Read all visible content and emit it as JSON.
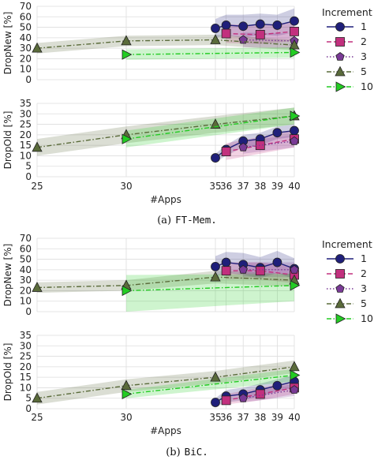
{
  "chart_data": [
    {
      "type": "line",
      "caption_prefix": "(a)",
      "caption_method": "FT-Mem.",
      "xlabel": "#Apps",
      "x_ticks": [
        25,
        30,
        35,
        36,
        37,
        38,
        39,
        40
      ],
      "legend_title": "Increment",
      "legend_placement": "right",
      "grid": true,
      "panels": [
        {
          "ylabel": "DropNew [%]",
          "ylim": [
            0,
            70
          ],
          "y_ticks": [
            0,
            10,
            20,
            30,
            40,
            50,
            60,
            70
          ],
          "series": [
            {
              "name": "1",
              "color": "#1f1f7a",
              "marker": "circle",
              "dash": "solid",
              "x": [
                35,
                36,
                37,
                38,
                39,
                40
              ],
              "y": [
                49,
                52,
                51,
                53,
                52,
                56
              ],
              "band_lo": [
                40,
                42,
                40,
                43,
                42,
                45
              ],
              "band_hi": [
                58,
                62,
                62,
                63,
                62,
                68
              ]
            },
            {
              "name": "2",
              "color": "#c2307e",
              "marker": "square",
              "dash": "dashed",
              "x": [
                36,
                38,
                40
              ],
              "y": [
                44,
                43,
                46
              ],
              "band_lo": [
                35,
                34,
                37
              ],
              "band_hi": [
                53,
                52,
                55
              ]
            },
            {
              "name": "3",
              "color": "#7a3a96",
              "marker": "pentagon",
              "dash": "dotted",
              "x": [
                37,
                40
              ],
              "y": [
                38,
                37
              ],
              "band_lo": [
                31,
                30
              ],
              "band_hi": [
                45,
                44
              ]
            },
            {
              "name": "5",
              "color": "#5a6b3a",
              "marker": "triangle-up",
              "dash": "dashdot",
              "x": [
                25,
                30,
                35,
                40
              ],
              "y": [
                30,
                37,
                38,
                33
              ],
              "band_lo": [
                25,
                32,
                33,
                28
              ],
              "band_hi": [
                35,
                42,
                43,
                38
              ]
            },
            {
              "name": "10",
              "color": "#22cc22",
              "marker": "triangle-right",
              "dash": "dashdot",
              "x": [
                30,
                40
              ],
              "y": [
                24,
                26
              ],
              "band_lo": [
                19,
                21
              ],
              "band_hi": [
                29,
                31
              ]
            }
          ]
        },
        {
          "ylabel": "DropOld [%]",
          "ylim": [
            0,
            35
          ],
          "y_ticks": [
            0,
            5,
            10,
            15,
            20,
            25,
            30,
            35
          ],
          "series": [
            {
              "name": "1",
              "color": "#1f1f7a",
              "marker": "circle",
              "dash": "solid",
              "x": [
                35,
                36,
                37,
                38,
                39,
                40
              ],
              "y": [
                9,
                13,
                17,
                18,
                21,
                22
              ],
              "band_lo": [
                7,
                10,
                14,
                15,
                18,
                19
              ],
              "band_hi": [
                11,
                15,
                20,
                21,
                24,
                25
              ]
            },
            {
              "name": "2",
              "color": "#c2307e",
              "marker": "square",
              "dash": "dashed",
              "x": [
                36,
                38,
                40
              ],
              "y": [
                12,
                15,
                18
              ],
              "band_lo": [
                8,
                11,
                14
              ],
              "band_hi": [
                16,
                19,
                22
              ]
            },
            {
              "name": "3",
              "color": "#7a3a96",
              "marker": "pentagon",
              "dash": "dotted",
              "x": [
                37,
                40
              ],
              "y": [
                14,
                17
              ],
              "band_lo": [
                11,
                14
              ],
              "band_hi": [
                17,
                20
              ]
            },
            {
              "name": "5",
              "color": "#5a6b3a",
              "marker": "triangle-up",
              "dash": "dashdot",
              "x": [
                25,
                30,
                35,
                40
              ],
              "y": [
                14,
                20,
                25,
                29
              ],
              "band_lo": [
                10,
                16,
                21,
                25
              ],
              "band_hi": [
                18,
                24,
                29,
                33
              ]
            },
            {
              "name": "10",
              "color": "#22cc22",
              "marker": "triangle-right",
              "dash": "dashdot",
              "x": [
                30,
                40
              ],
              "y": [
                18,
                29
              ],
              "band_lo": [
                14,
                25
              ],
              "band_hi": [
                22,
                33
              ]
            }
          ]
        }
      ]
    },
    {
      "type": "line",
      "caption_prefix": "(b)",
      "caption_method": "BiC.",
      "xlabel": "#Apps",
      "x_ticks": [
        25,
        30,
        35,
        36,
        37,
        38,
        39,
        40
      ],
      "legend_title": "Increment",
      "legend_placement": "right",
      "grid": true,
      "panels": [
        {
          "ylabel": "DropNew [%]",
          "ylim": [
            0,
            70
          ],
          "y_ticks": [
            0,
            10,
            20,
            30,
            40,
            50,
            60,
            70
          ],
          "series": [
            {
              "name": "1",
              "color": "#1f1f7a",
              "marker": "circle",
              "dash": "solid",
              "x": [
                35,
                36,
                37,
                38,
                39,
                40
              ],
              "y": [
                43,
                47,
                45,
                42,
                47,
                41
              ],
              "band_lo": [
                33,
                37,
                35,
                32,
                37,
                31
              ],
              "band_hi": [
                53,
                57,
                56,
                52,
                58,
                51
              ]
            },
            {
              "name": "2",
              "color": "#c2307e",
              "marker": "square",
              "dash": "dashed",
              "x": [
                36,
                38,
                40
              ],
              "y": [
                39,
                39,
                35
              ],
              "band_lo": [
                31,
                31,
                27
              ],
              "band_hi": [
                47,
                47,
                43
              ]
            },
            {
              "name": "3",
              "color": "#7a3a96",
              "marker": "pentagon",
              "dash": "dotted",
              "x": [
                37,
                40
              ],
              "y": [
                40,
                40
              ],
              "band_lo": [
                33,
                33
              ],
              "band_hi": [
                47,
                47
              ]
            },
            {
              "name": "5",
              "color": "#5a6b3a",
              "marker": "triangle-up",
              "dash": "dashdot",
              "x": [
                25,
                30,
                35,
                40
              ],
              "y": [
                23,
                25,
                33,
                30
              ],
              "band_lo": [
                18,
                20,
                27,
                24
              ],
              "band_hi": [
                28,
                30,
                39,
                36
              ]
            },
            {
              "name": "10",
              "color": "#22cc22",
              "marker": "triangle-right",
              "dash": "dashdot",
              "x": [
                30,
                40
              ],
              "y": [
                20,
                25
              ],
              "band_lo": [
                0,
                10
              ],
              "band_hi": [
                35,
                36
              ]
            }
          ]
        },
        {
          "ylabel": "DropOld [%]",
          "ylim": [
            0,
            35
          ],
          "y_ticks": [
            0,
            5,
            10,
            15,
            20,
            25,
            30,
            35
          ],
          "series": [
            {
              "name": "1",
              "color": "#1f1f7a",
              "marker": "circle",
              "dash": "solid",
              "x": [
                35,
                36,
                37,
                38,
                39,
                40
              ],
              "y": [
                3,
                6,
                7,
                9,
                11,
                13
              ],
              "band_lo": [
                1,
                3,
                4,
                6,
                8,
                10
              ],
              "band_hi": [
                5,
                9,
                10,
                12,
                14,
                16
              ]
            },
            {
              "name": "2",
              "color": "#c2307e",
              "marker": "square",
              "dash": "dashed",
              "x": [
                36,
                38,
                40
              ],
              "y": [
                4,
                7,
                10
              ],
              "band_lo": [
                2,
                4,
                7
              ],
              "band_hi": [
                7,
                10,
                13
              ]
            },
            {
              "name": "3",
              "color": "#7a3a96",
              "marker": "pentagon",
              "dash": "dotted",
              "x": [
                37,
                40
              ],
              "y": [
                5,
                9
              ],
              "band_lo": [
                3,
                6
              ],
              "band_hi": [
                7,
                12
              ]
            },
            {
              "name": "5",
              "color": "#5a6b3a",
              "marker": "triangle-up",
              "dash": "dashdot",
              "x": [
                25,
                30,
                35,
                40
              ],
              "y": [
                5,
                11,
                15,
                20
              ],
              "band_lo": [
                2,
                8,
                12,
                17
              ],
              "band_hi": [
                8,
                14,
                18,
                23
              ]
            },
            {
              "name": "10",
              "color": "#22cc22",
              "marker": "triangle-right",
              "dash": "dashdot",
              "x": [
                30,
                40
              ],
              "y": [
                7,
                16
              ],
              "band_lo": [
                5,
                13
              ],
              "band_hi": [
                9,
                19
              ]
            }
          ]
        }
      ]
    }
  ]
}
